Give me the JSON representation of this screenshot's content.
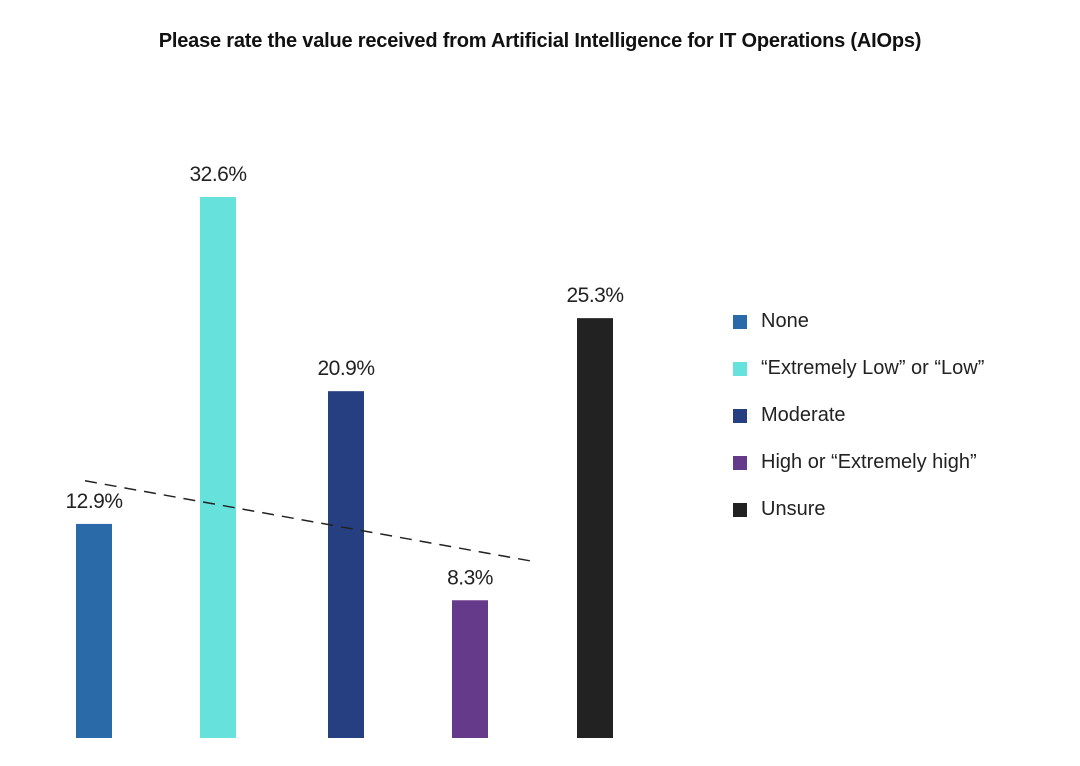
{
  "chart_data": {
    "type": "bar",
    "title": "Please rate the value received from Artificial  Intelligence for IT Operations (AIOps)",
    "categories": [
      "None",
      "“Extremely Low” or “Low”",
      "Moderate",
      "High or “Extremely high”",
      "Unsure"
    ],
    "values": [
      12.9,
      32.6,
      20.9,
      8.3,
      25.3
    ],
    "data_labels": [
      "12.9%",
      "32.6%",
      "20.9%",
      "8.3%",
      "25.3%"
    ],
    "colors": [
      "#2b6aa8",
      "#66e1dc",
      "#263f80",
      "#663a8a",
      "#222222"
    ],
    "ylim": [
      0,
      32.6
    ],
    "grid": false,
    "legend_position": "right",
    "trendline": {
      "style": "dashed",
      "color": "#222222",
      "start_value": 15.5,
      "end_value": 10.6
    }
  }
}
